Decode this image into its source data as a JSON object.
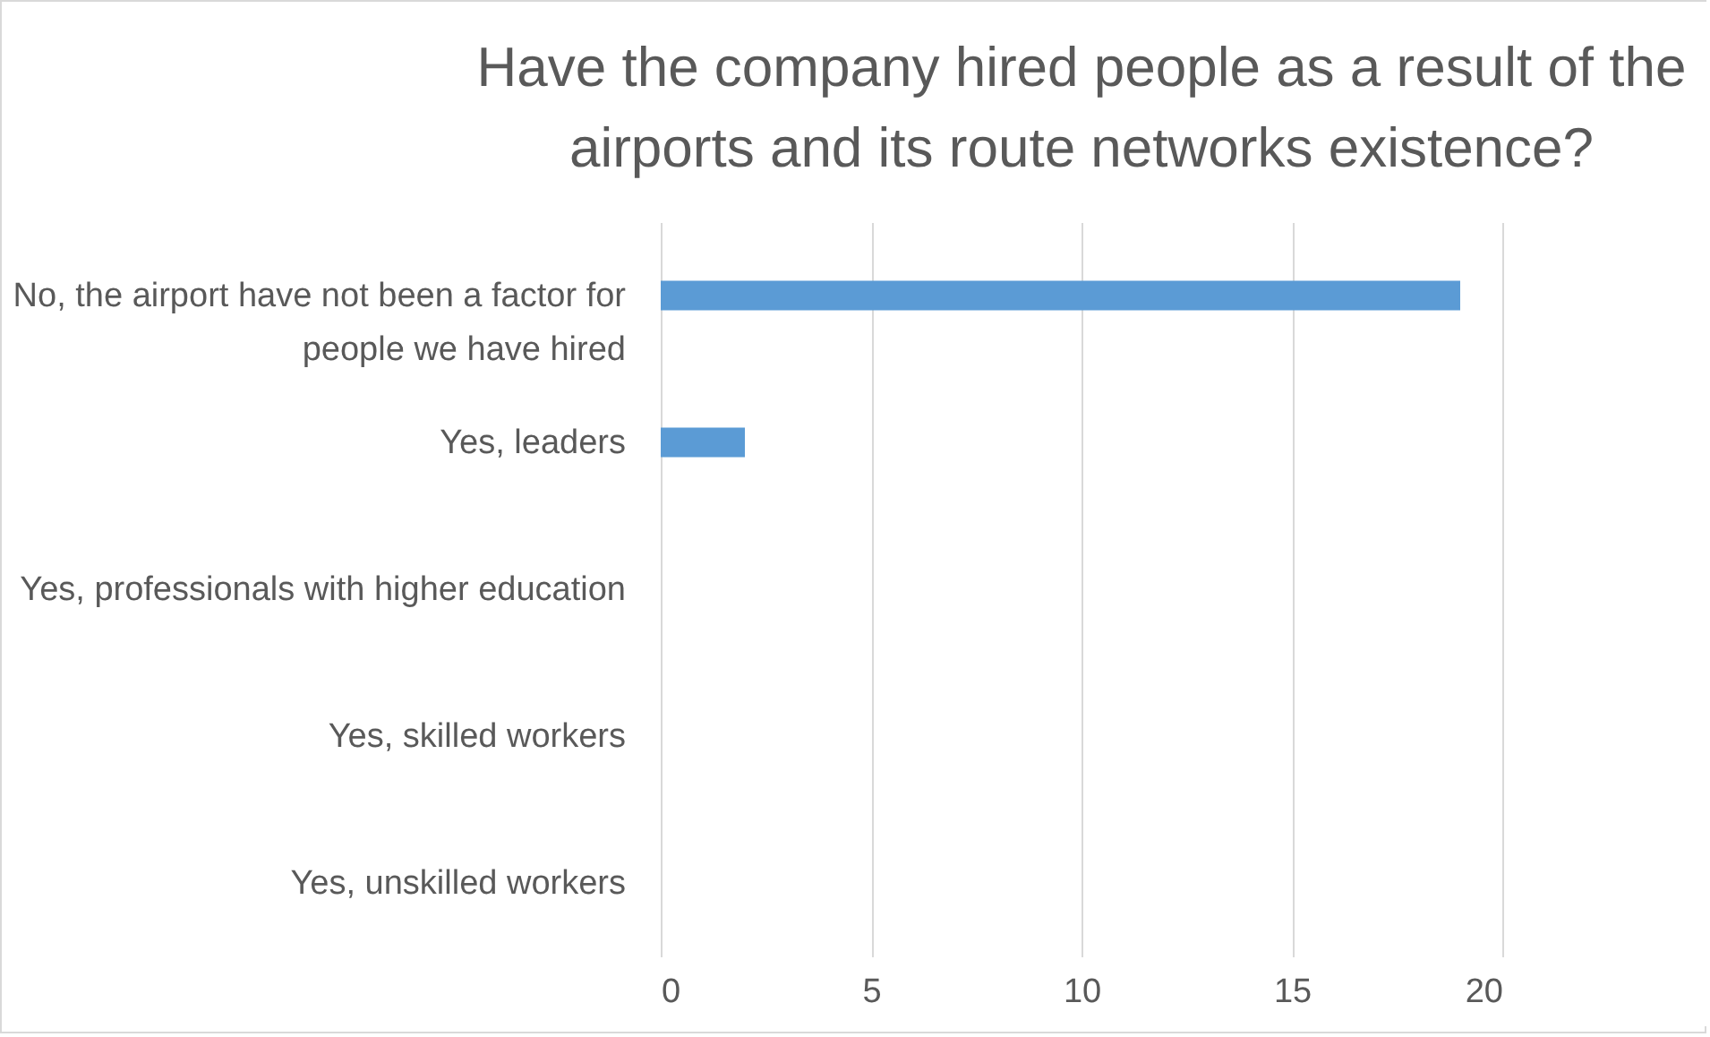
{
  "chart_data": {
    "type": "bar",
    "orientation": "horizontal",
    "title": "Have the company hired people as a result of the airports and its route networks existence?",
    "categories": [
      "No, the airport have not been a factor for people we have hired",
      "Yes, leaders",
      "Yes, professionals with higher education",
      "Yes, skilled workers",
      "Yes, unskilled workers"
    ],
    "values": [
      19,
      2,
      0,
      0,
      0
    ],
    "color": "#5b9bd5",
    "xlim": [
      0,
      20
    ],
    "xticks": [
      0,
      5,
      10,
      15,
      20
    ],
    "grid": "x"
  }
}
